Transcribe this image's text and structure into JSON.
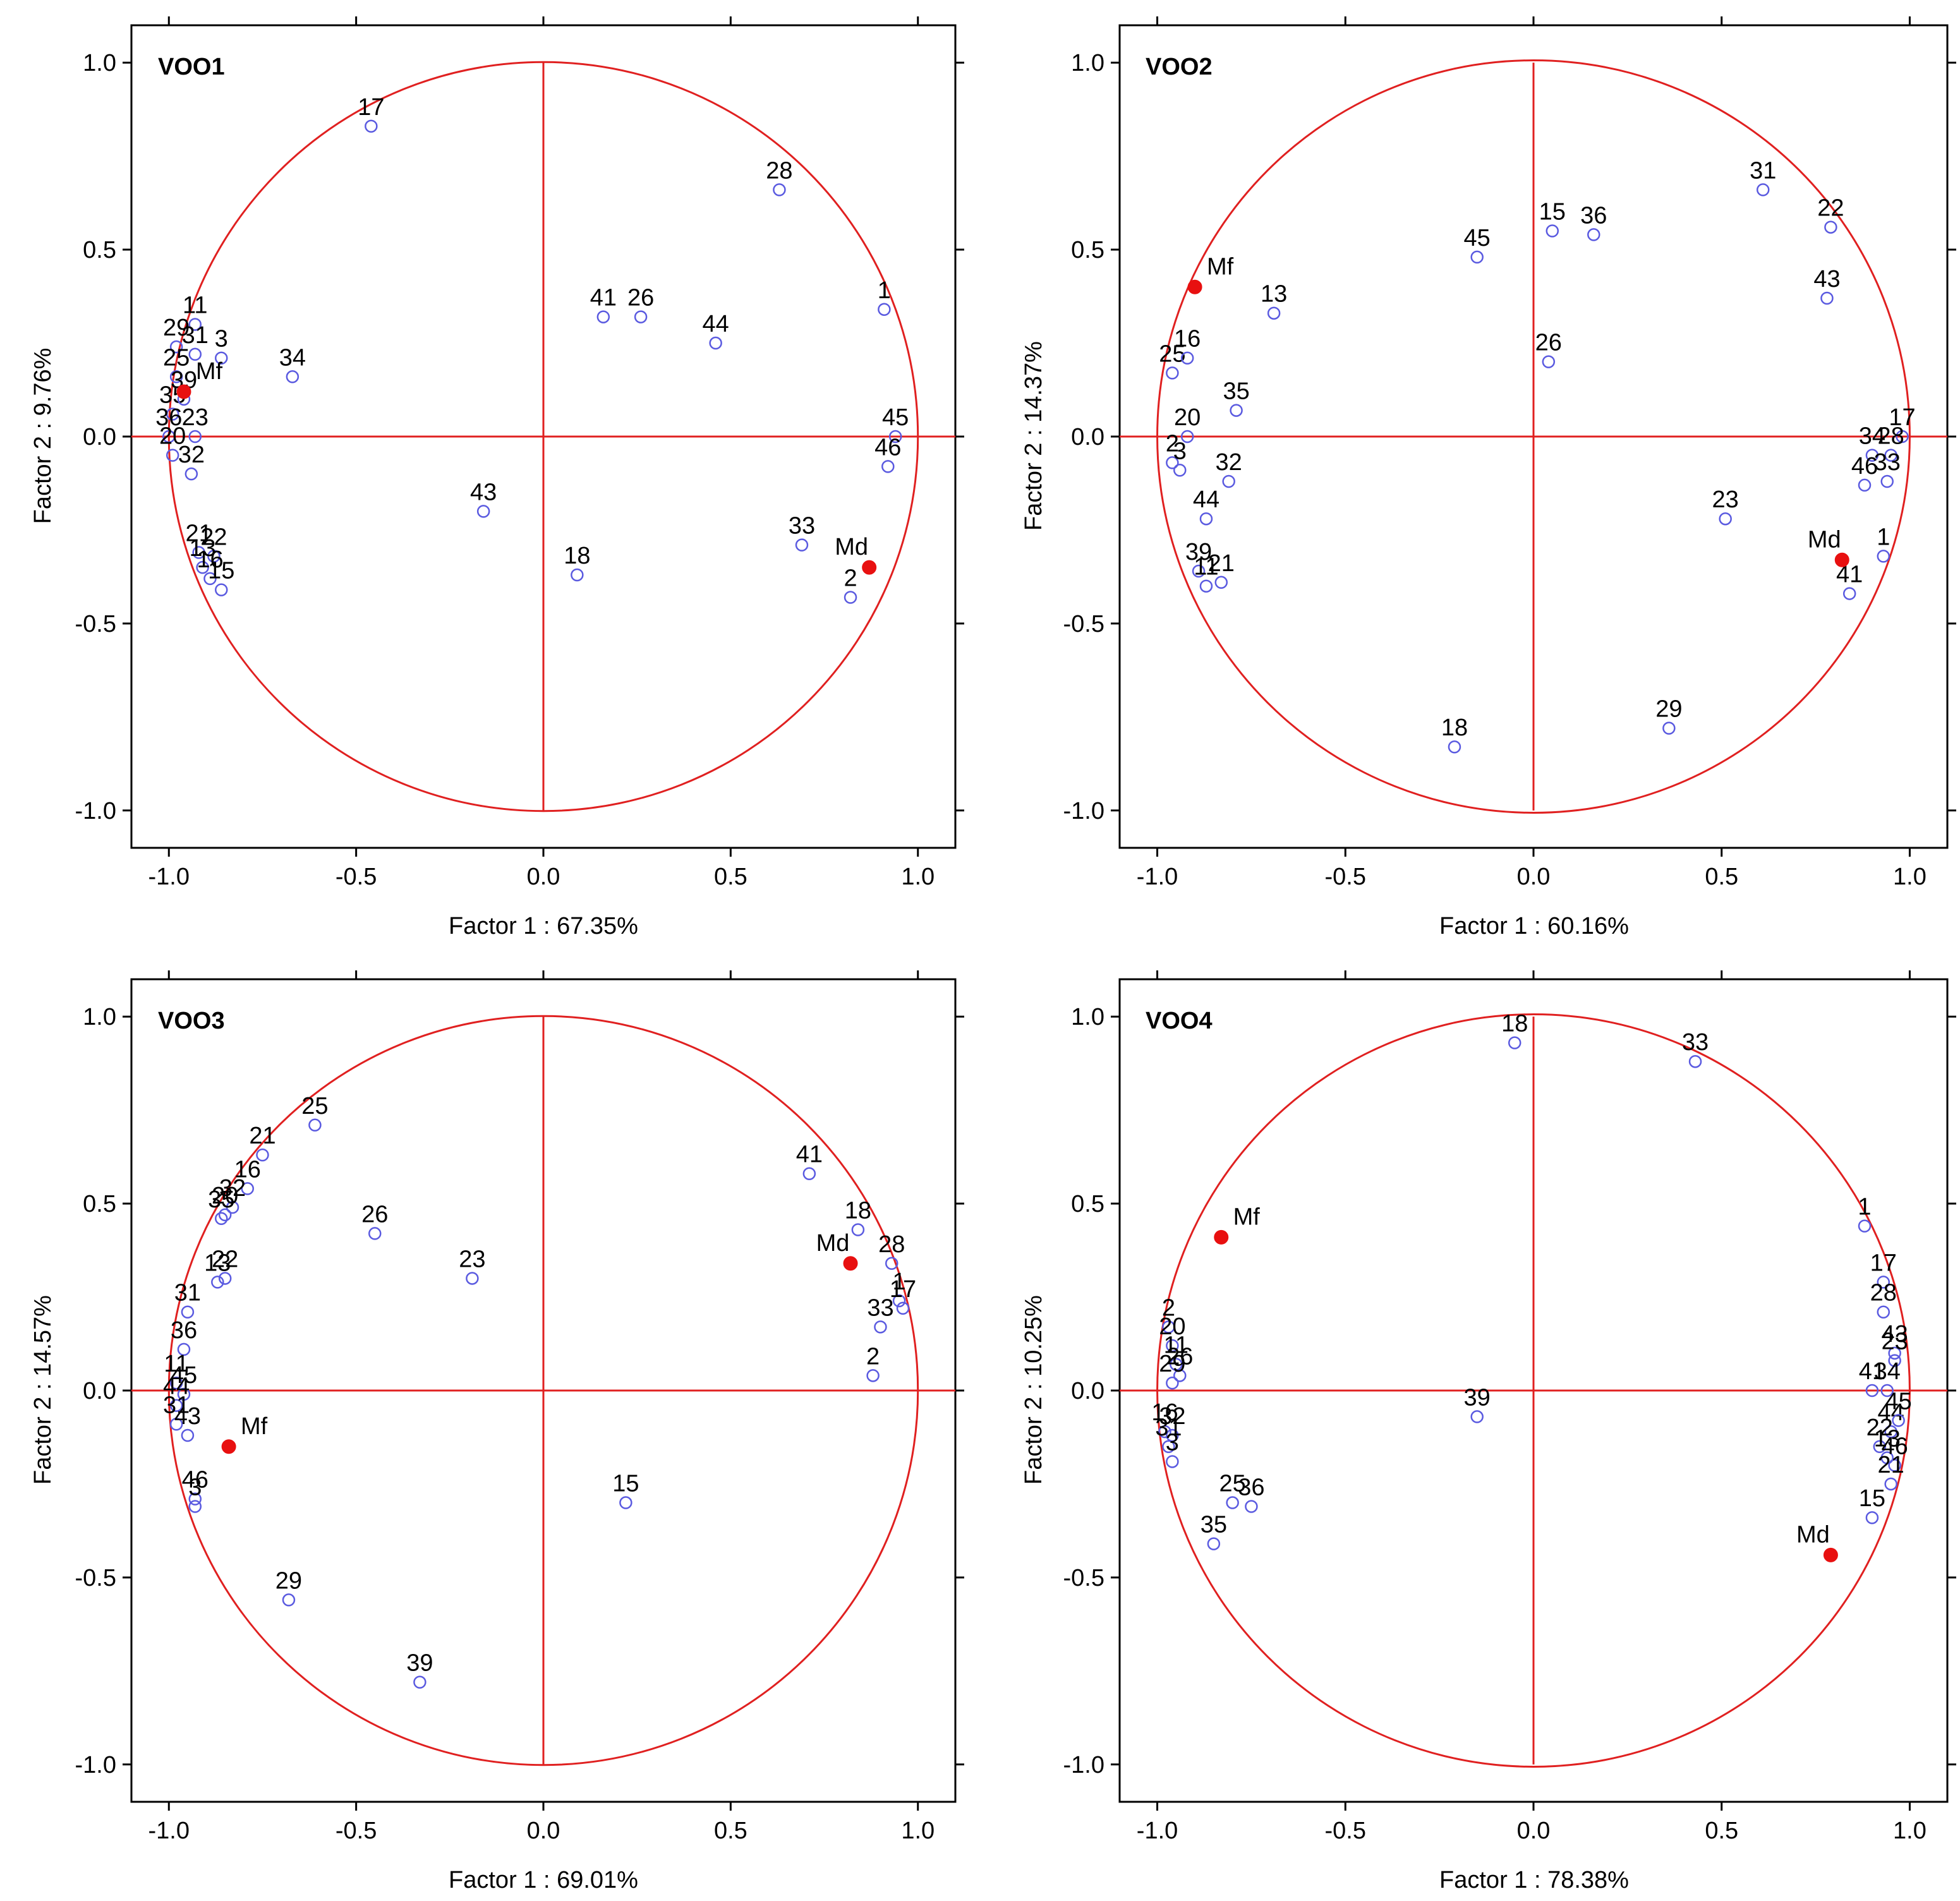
{
  "colors": {
    "circle": "#e02020",
    "point": "#5a5ae0",
    "sup_point": "#e81010",
    "frame": "#000000"
  },
  "chart_data": [
    {
      "type": "scatter",
      "title": "VOO1",
      "xlabel": "Factor 1 : 67.35%",
      "ylabel": "Factor 2 :  9.76%",
      "xlim": [
        -1.1,
        1.1
      ],
      "ylim": [
        -1.1,
        1.1
      ],
      "xticks": [
        "-1.0",
        "-0.5",
        "0.0",
        "0.5",
        "1.0"
      ],
      "yticks": [
        "-1.0",
        "-0.5",
        "0.0",
        "0.5",
        "1.0"
      ],
      "points": [
        {
          "label": "17",
          "x": -0.46,
          "y": 0.83
        },
        {
          "label": "28",
          "x": 0.63,
          "y": 0.66
        },
        {
          "label": "41",
          "x": 0.16,
          "y": 0.32
        },
        {
          "label": "26",
          "x": 0.26,
          "y": 0.32
        },
        {
          "label": "44",
          "x": 0.46,
          "y": 0.25
        },
        {
          "label": "1",
          "x": 0.91,
          "y": 0.34
        },
        {
          "label": "45",
          "x": 0.94,
          "y": 0.0
        },
        {
          "label": "46",
          "x": 0.92,
          "y": -0.08
        },
        {
          "label": "11",
          "x": -0.93,
          "y": 0.3
        },
        {
          "label": "29",
          "x": -0.98,
          "y": 0.24
        },
        {
          "label": "31",
          "x": -0.93,
          "y": 0.22
        },
        {
          "label": "3",
          "x": -0.86,
          "y": 0.21
        },
        {
          "label": "34",
          "x": -0.67,
          "y": 0.16
        },
        {
          "label": "25",
          "x": -0.98,
          "y": 0.16
        },
        {
          "label": "35",
          "x": -0.99,
          "y": 0.06
        },
        {
          "label": "39",
          "x": -0.96,
          "y": 0.1
        },
        {
          "label": "36",
          "x": -1.0,
          "y": 0.0
        },
        {
          "label": "23",
          "x": -0.93,
          "y": 0.0
        },
        {
          "label": "20",
          "x": -0.99,
          "y": -0.05
        },
        {
          "label": "32",
          "x": -0.94,
          "y": -0.1
        },
        {
          "label": "43",
          "x": -0.16,
          "y": -0.2
        },
        {
          "label": "21",
          "x": -0.92,
          "y": -0.31
        },
        {
          "label": "22",
          "x": -0.88,
          "y": -0.32
        },
        {
          "label": "13",
          "x": -0.91,
          "y": -0.35
        },
        {
          "label": "16",
          "x": -0.89,
          "y": -0.38
        },
        {
          "label": "15",
          "x": -0.86,
          "y": -0.41
        },
        {
          "label": "18",
          "x": 0.09,
          "y": -0.37
        },
        {
          "label": "33",
          "x": 0.69,
          "y": -0.29
        },
        {
          "label": "2",
          "x": 0.82,
          "y": -0.43
        }
      ],
      "supplementary": [
        {
          "label": "Mf",
          "x": -0.96,
          "y": 0.12
        },
        {
          "label": "Md",
          "x": 0.87,
          "y": -0.35
        }
      ]
    },
    {
      "type": "scatter",
      "title": "VOO2",
      "xlabel": "Factor 1 : 60.16%",
      "ylabel": "Factor 2 : 14.37%",
      "xlim": [
        -1.1,
        1.1
      ],
      "ylim": [
        -1.1,
        1.1
      ],
      "xticks": [
        "-1.0",
        "-0.5",
        "0.0",
        "0.5",
        "1.0"
      ],
      "yticks": [
        "-1.0",
        "-0.5",
        "0.0",
        "0.5",
        "1.0"
      ],
      "points": [
        {
          "label": "31",
          "x": 0.61,
          "y": 0.66
        },
        {
          "label": "22",
          "x": 0.79,
          "y": 0.56
        },
        {
          "label": "15",
          "x": 0.05,
          "y": 0.55
        },
        {
          "label": "36",
          "x": 0.16,
          "y": 0.54
        },
        {
          "label": "45",
          "x": -0.15,
          "y": 0.48
        },
        {
          "label": "43",
          "x": 0.78,
          "y": 0.37
        },
        {
          "label": "13",
          "x": -0.69,
          "y": 0.33
        },
        {
          "label": "25",
          "x": -0.96,
          "y": 0.17
        },
        {
          "label": "16",
          "x": -0.92,
          "y": 0.21
        },
        {
          "label": "26",
          "x": 0.04,
          "y": 0.2
        },
        {
          "label": "35",
          "x": -0.79,
          "y": 0.07
        },
        {
          "label": "20",
          "x": -0.92,
          "y": 0.0
        },
        {
          "label": "2",
          "x": -0.96,
          "y": -0.07
        },
        {
          "label": "3",
          "x": -0.94,
          "y": -0.09
        },
        {
          "label": "32",
          "x": -0.81,
          "y": -0.12
        },
        {
          "label": "44",
          "x": -0.87,
          "y": -0.22
        },
        {
          "label": "39",
          "x": -0.89,
          "y": -0.36
        },
        {
          "label": "11",
          "x": -0.87,
          "y": -0.4
        },
        {
          "label": "21",
          "x": -0.83,
          "y": -0.39
        },
        {
          "label": "17",
          "x": 0.98,
          "y": 0.0
        },
        {
          "label": "34",
          "x": 0.9,
          "y": -0.05
        },
        {
          "label": "28",
          "x": 0.95,
          "y": -0.05
        },
        {
          "label": "46",
          "x": 0.88,
          "y": -0.13
        },
        {
          "label": "33",
          "x": 0.94,
          "y": -0.12
        },
        {
          "label": "1",
          "x": 0.93,
          "y": -0.32
        },
        {
          "label": "41",
          "x": 0.84,
          "y": -0.42
        },
        {
          "label": "23",
          "x": 0.51,
          "y": -0.22
        },
        {
          "label": "18",
          "x": -0.21,
          "y": -0.83
        },
        {
          "label": "29",
          "x": 0.36,
          "y": -0.78
        }
      ],
      "supplementary": [
        {
          "label": "Mf",
          "x": -0.9,
          "y": 0.4
        },
        {
          "label": "Md",
          "x": 0.82,
          "y": -0.33
        }
      ]
    },
    {
      "type": "scatter",
      "title": "VOO3",
      "xlabel": "Factor 1 : 69.01%",
      "ylabel": "Factor 2 : 14.57%",
      "xlim": [
        -1.1,
        1.1
      ],
      "ylim": [
        -1.1,
        1.1
      ],
      "xticks": [
        "-1.0",
        "-0.5",
        "0.0",
        "0.5",
        "1.0"
      ],
      "yticks": [
        "-1.0",
        "-0.5",
        "0.0",
        "0.5",
        "1.0"
      ],
      "points": [
        {
          "label": "25",
          "x": -0.61,
          "y": 0.71
        },
        {
          "label": "21",
          "x": -0.75,
          "y": 0.63
        },
        {
          "label": "16",
          "x": -0.79,
          "y": 0.54
        },
        {
          "label": "32",
          "x": -0.83,
          "y": 0.49
        },
        {
          "label": "35",
          "x": -0.86,
          "y": 0.46
        },
        {
          "label": "20",
          "x": -0.85,
          "y": 0.47
        },
        {
          "label": "26",
          "x": -0.45,
          "y": 0.42
        },
        {
          "label": "23",
          "x": -0.19,
          "y": 0.3
        },
        {
          "label": "13",
          "x": -0.87,
          "y": 0.29
        },
        {
          "label": "22",
          "x": -0.85,
          "y": 0.3
        },
        {
          "label": "31",
          "x": -0.95,
          "y": 0.21
        },
        {
          "label": "36",
          "x": -0.96,
          "y": 0.11
        },
        {
          "label": "11",
          "x": -0.98,
          "y": 0.02
        },
        {
          "label": "45",
          "x": -0.96,
          "y": -0.01
        },
        {
          "label": "44",
          "x": -0.98,
          "y": -0.04
        },
        {
          "label": "31",
          "x": -0.98,
          "y": -0.09
        },
        {
          "label": "43",
          "x": -0.95,
          "y": -0.12
        },
        {
          "label": "46",
          "x": -0.93,
          "y": -0.29
        },
        {
          "label": "3",
          "x": -0.93,
          "y": -0.31
        },
        {
          "label": "41",
          "x": 0.71,
          "y": 0.58
        },
        {
          "label": "18",
          "x": 0.84,
          "y": 0.43
        },
        {
          "label": "28",
          "x": 0.93,
          "y": 0.34
        },
        {
          "label": "1",
          "x": 0.95,
          "y": 0.24
        },
        {
          "label": "17",
          "x": 0.96,
          "y": 0.22
        },
        {
          "label": "33",
          "x": 0.9,
          "y": 0.17
        },
        {
          "label": "2",
          "x": 0.88,
          "y": 0.04
        },
        {
          "label": "15",
          "x": 0.22,
          "y": -0.3
        },
        {
          "label": "29",
          "x": -0.68,
          "y": -0.56
        },
        {
          "label": "39",
          "x": -0.33,
          "y": -0.78
        }
      ],
      "supplementary": [
        {
          "label": "Md",
          "x": 0.82,
          "y": 0.34
        },
        {
          "label": "Mf",
          "x": -0.84,
          "y": -0.15
        }
      ]
    },
    {
      "type": "scatter",
      "title": "VOO4",
      "xlabel": "Factor 1 : 78.38%",
      "ylabel": "Factor 2 : 10.25%",
      "xlim": [
        -1.1,
        1.1
      ],
      "ylim": [
        -1.1,
        1.1
      ],
      "xticks": [
        "-1.0",
        "-0.5",
        "0.0",
        "0.5",
        "1.0"
      ],
      "yticks": [
        "-1.0",
        "-0.5",
        "0.0",
        "0.5",
        "1.0"
      ],
      "points": [
        {
          "label": "18",
          "x": -0.05,
          "y": 0.93
        },
        {
          "label": "33",
          "x": 0.43,
          "y": 0.88
        },
        {
          "label": "1",
          "x": 0.88,
          "y": 0.44
        },
        {
          "label": "17",
          "x": 0.93,
          "y": 0.29
        },
        {
          "label": "28",
          "x": 0.93,
          "y": 0.21
        },
        {
          "label": "43",
          "x": 0.96,
          "y": 0.1
        },
        {
          "label": "23",
          "x": 0.96,
          "y": 0.08
        },
        {
          "label": "41",
          "x": 0.9,
          "y": 0.0
        },
        {
          "label": "34",
          "x": 0.94,
          "y": 0.0
        },
        {
          "label": "44",
          "x": 0.95,
          "y": -0.11
        },
        {
          "label": "45",
          "x": 0.97,
          "y": -0.08
        },
        {
          "label": "22",
          "x": 0.92,
          "y": -0.15
        },
        {
          "label": "13",
          "x": 0.94,
          "y": -0.18
        },
        {
          "label": "46",
          "x": 0.96,
          "y": -0.2
        },
        {
          "label": "21",
          "x": 0.95,
          "y": -0.25
        },
        {
          "label": "15",
          "x": 0.9,
          "y": -0.34
        },
        {
          "label": "2",
          "x": -0.97,
          "y": 0.17
        },
        {
          "label": "20",
          "x": -0.96,
          "y": 0.12
        },
        {
          "label": "11",
          "x": -0.95,
          "y": 0.07
        },
        {
          "label": "26",
          "x": -0.94,
          "y": 0.04
        },
        {
          "label": "29",
          "x": -0.96,
          "y": 0.02
        },
        {
          "label": "16",
          "x": -0.98,
          "y": -0.11
        },
        {
          "label": "32",
          "x": -0.96,
          "y": -0.12
        },
        {
          "label": "31",
          "x": -0.97,
          "y": -0.15
        },
        {
          "label": "3",
          "x": -0.96,
          "y": -0.19
        },
        {
          "label": "25",
          "x": -0.8,
          "y": -0.3
        },
        {
          "label": "36",
          "x": -0.75,
          "y": -0.31
        },
        {
          "label": "35",
          "x": -0.85,
          "y": -0.41
        },
        {
          "label": "39",
          "x": -0.15,
          "y": -0.07
        }
      ],
      "supplementary": [
        {
          "label": "Mf",
          "x": -0.83,
          "y": 0.41
        },
        {
          "label": "Md",
          "x": 0.79,
          "y": -0.44
        }
      ]
    }
  ]
}
